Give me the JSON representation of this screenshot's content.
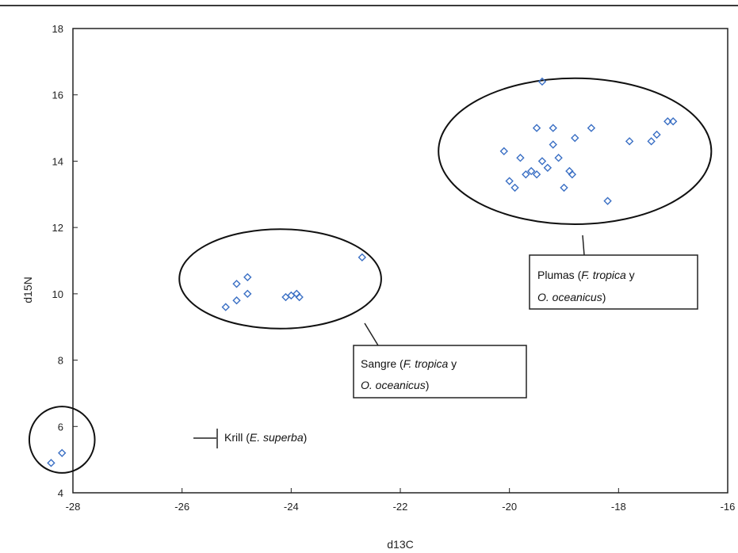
{
  "chart_data": {
    "type": "scatter",
    "xlabel": "d13C",
    "ylabel": "d15N",
    "xlim": [
      -28,
      -16
    ],
    "ylim": [
      4,
      18
    ],
    "xticks": [
      -28,
      -26,
      -24,
      -22,
      -20,
      -18,
      -16
    ],
    "yticks": [
      4,
      6,
      8,
      10,
      12,
      14,
      16,
      18
    ],
    "grid": false,
    "marker": "diamond",
    "marker_color": "#3a6fc4",
    "series": [
      {
        "values": [
          {
            "x": -28.4,
            "y": 4.9
          },
          {
            "x": -28.2,
            "y": 5.2
          },
          {
            "x": -25.2,
            "y": 9.6
          },
          {
            "x": -25.0,
            "y": 9.8
          },
          {
            "x": -24.8,
            "y": 10.0
          },
          {
            "x": -25.0,
            "y": 10.3
          },
          {
            "x": -24.8,
            "y": 10.5
          },
          {
            "x": -24.1,
            "y": 9.9
          },
          {
            "x": -24.0,
            "y": 9.95
          },
          {
            "x": -23.9,
            "y": 10.0
          },
          {
            "x": -23.85,
            "y": 9.9
          },
          {
            "x": -22.7,
            "y": 11.1
          },
          {
            "x": -19.4,
            "y": 16.4
          },
          {
            "x": -19.5,
            "y": 15.0
          },
          {
            "x": -19.2,
            "y": 15.0
          },
          {
            "x": -18.5,
            "y": 15.0
          },
          {
            "x": -17.1,
            "y": 15.2
          },
          {
            "x": -17.0,
            "y": 15.2
          },
          {
            "x": -19.2,
            "y": 14.5
          },
          {
            "x": -18.8,
            "y": 14.7
          },
          {
            "x": -17.8,
            "y": 14.6
          },
          {
            "x": -17.4,
            "y": 14.6
          },
          {
            "x": -17.3,
            "y": 14.8
          },
          {
            "x": -20.1,
            "y": 14.3
          },
          {
            "x": -19.8,
            "y": 14.1
          },
          {
            "x": -19.4,
            "y": 14.0
          },
          {
            "x": -19.1,
            "y": 14.1
          },
          {
            "x": -19.3,
            "y": 13.8
          },
          {
            "x": -19.6,
            "y": 13.7
          },
          {
            "x": -19.5,
            "y": 13.6
          },
          {
            "x": -19.7,
            "y": 13.6
          },
          {
            "x": -18.9,
            "y": 13.7
          },
          {
            "x": -18.85,
            "y": 13.6
          },
          {
            "x": -20.0,
            "y": 13.4
          },
          {
            "x": -19.9,
            "y": 13.2
          },
          {
            "x": -19.0,
            "y": 13.2
          },
          {
            "x": -18.2,
            "y": 12.8
          }
        ]
      }
    ],
    "groups": [
      {
        "center": [
          -28.2,
          5.6
        ],
        "radius": [
          0.6,
          1.0
        ],
        "label": "Krill (E. superba)",
        "label_plain": "Krill (",
        "label_italic": "E. superba",
        "label_end": ")"
      },
      {
        "center": [
          -24.2,
          10.45
        ],
        "radius": [
          1.85,
          1.5
        ],
        "label_line1": "Sangre (F. tropica y",
        "label_line2": "O. oceanicus)"
      },
      {
        "center": [
          -18.8,
          14.3
        ],
        "radius": [
          2.5,
          2.2
        ],
        "label_line1": "Plumas (F. tropica y",
        "label_line2": "O. oceanicus)"
      }
    ]
  },
  "annotations": {
    "krill": {
      "plain": "Krill (",
      "italic": "E. superba",
      "end": ")"
    },
    "sangre": {
      "line1_plain": "Sangre (",
      "line1_italic": "F. tropica",
      "line1_end": " y",
      "line2_italic": "O. oceanicus",
      "line2_end": ")"
    },
    "plumas": {
      "line1_plain": "Plumas (",
      "line1_italic": "F. tropica",
      "line1_end": " y",
      "line2_italic": "O. oceanicus",
      "line2_end": ")"
    }
  }
}
